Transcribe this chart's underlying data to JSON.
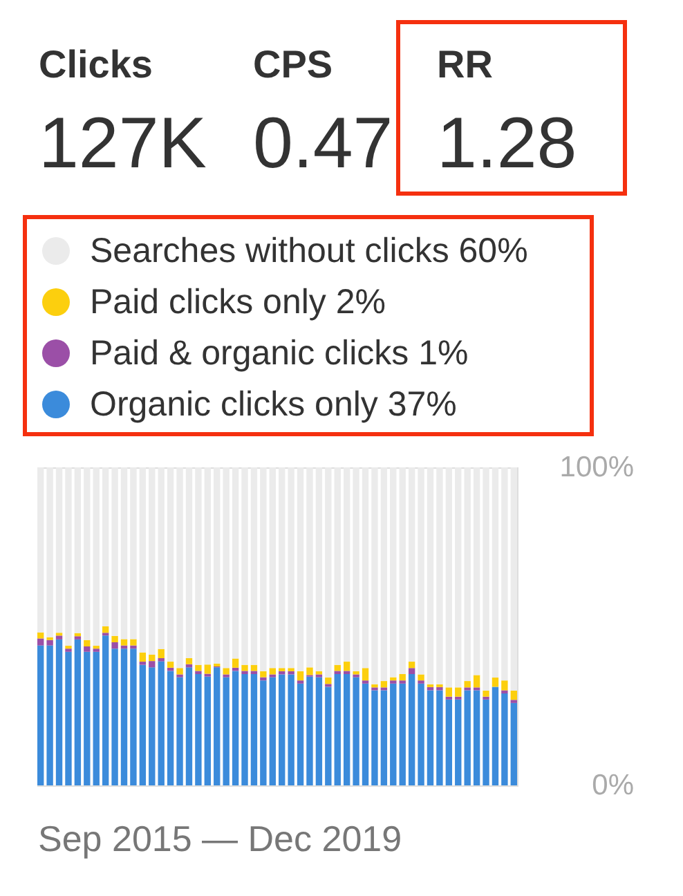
{
  "chart_data": {
    "type": "bar",
    "stacked": true,
    "xlabel": "Sep 2015 — Dec 2019",
    "annotations": [
      "Clicks",
      "127K",
      "CPS",
      "0.47",
      "RR",
      "1.28"
    ],
    "categories": [
      null,
      null,
      null,
      null,
      null,
      null,
      null,
      null,
      null,
      null,
      null,
      null,
      null,
      null,
      null,
      null,
      null,
      null,
      null,
      null,
      null,
      null,
      null,
      null,
      null,
      null,
      null,
      null,
      null,
      null,
      null,
      null,
      null,
      null,
      null,
      null,
      null,
      null,
      null,
      null,
      null,
      null,
      null,
      null,
      null,
      null,
      null,
      null,
      null,
      null,
      null,
      null
    ],
    "series": [
      {
        "name": "Organic clicks only 37%",
        "color": "#3b8bdb",
        "values": [
          44.0,
          44.0,
          45.9,
          42.0,
          45.9,
          42.0,
          42.0,
          47.1,
          43.0,
          43.0,
          43.0,
          37.9,
          37.1,
          39.0,
          36.0,
          34.0,
          37.1,
          35.0,
          34.2,
          37.1,
          34.0,
          36.0,
          35.0,
          35.0,
          33.0,
          34.0,
          34.9,
          34.9,
          32.0,
          34.2,
          34.0,
          31.0,
          35.0,
          35.0,
          34.0,
          32.0,
          29.9,
          29.9,
          32.0,
          32.0,
          35.0,
          32.0,
          29.9,
          29.9,
          27.0,
          27.0,
          29.9,
          29.9,
          27.0,
          31.0,
          28.9,
          25.9
        ]
      },
      {
        "name": "Paid & organic clicks 1%",
        "color": "#9b4fa7",
        "values": [
          2.2,
          1.7,
          1.2,
          1.0,
          1.0,
          1.7,
          1.0,
          0.9,
          2.0,
          1.0,
          1.0,
          1.0,
          2.0,
          1.0,
          1.0,
          0.9,
          1.0,
          1.0,
          0.9,
          0.3,
          0.9,
          1.0,
          1.0,
          1.0,
          1.0,
          0.9,
          1.0,
          1.0,
          1.0,
          0.5,
          0.9,
          0.9,
          1.0,
          1.0,
          0.9,
          1.0,
          0.9,
          0.9,
          1.0,
          1.0,
          1.9,
          1.0,
          1.0,
          1.0,
          0.9,
          0.9,
          0.9,
          0.9,
          0.9,
          0,
          1.0,
          1.0
        ]
      },
      {
        "name": "Paid clicks only 2%",
        "color": "#fccf0e",
        "values": [
          1.9,
          0.9,
          0.9,
          0.9,
          1.0,
          2.0,
          0.9,
          2.0,
          2.0,
          2.0,
          2.0,
          2.9,
          2.0,
          2.9,
          1.9,
          2.0,
          1.9,
          1.9,
          2.9,
          0.9,
          2.0,
          2.9,
          1.9,
          1.9,
          1.9,
          2.0,
          1.0,
          1.0,
          2.9,
          2.4,
          1.0,
          2.0,
          1.9,
          2.9,
          1.0,
          3.9,
          1.0,
          2.0,
          1.0,
          2.0,
          2.0,
          1.9,
          0.9,
          0.9,
          2.9,
          2.9,
          2.0,
          3.9,
          1.9,
          2.9,
          3.1,
          2.9
        ]
      },
      {
        "name": "Searches without clicks 60%",
        "color": "#ebebeb",
        "values": [
          51.9,
          53.4,
          52.0,
          56.1,
          52.1,
          54.3,
          56.1,
          50.0,
          53.0,
          54.0,
          54.0,
          58.2,
          58.9,
          57.1,
          61.1,
          63.1,
          60.0,
          62.1,
          62.0,
          61.7,
          63.1,
          60.1,
          62.1,
          62.1,
          64.1,
          63.1,
          63.1,
          63.1,
          64.1,
          62.9,
          64.1,
          66.1,
          62.1,
          61.1,
          64.1,
          63.1,
          68.2,
          67.2,
          66.0,
          65.0,
          61.1,
          65.1,
          68.2,
          68.2,
          69.2,
          69.2,
          67.2,
          65.3,
          70.2,
          66.1,
          67.0,
          70.2
        ]
      }
    ],
    "ylim": [
      0,
      100
    ],
    "yticks": [
      {
        "value": 0,
        "label": "0%"
      },
      {
        "value": 100,
        "label": "100%"
      }
    ],
    "tick_labels": "y",
    "legend": "top left"
  }
}
